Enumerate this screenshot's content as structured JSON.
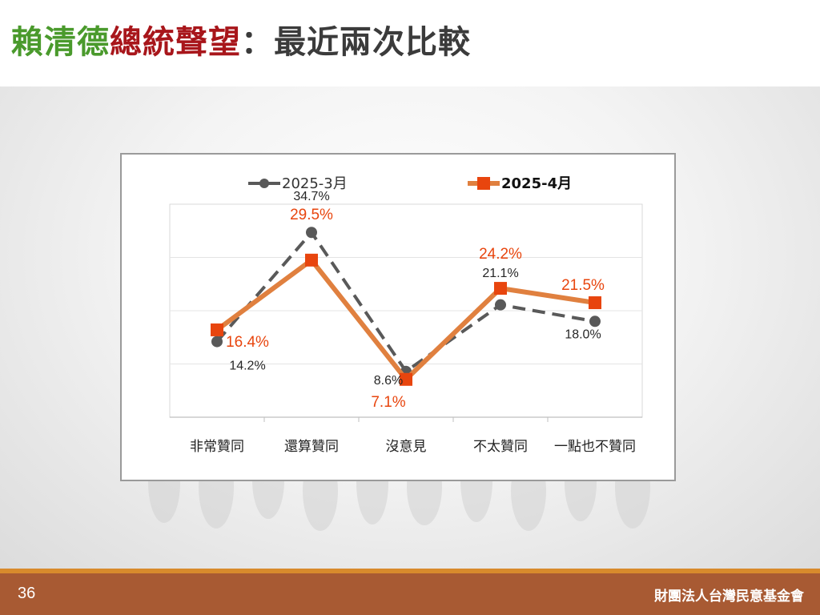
{
  "slide": {
    "title_part1": "賴清德",
    "title_part2": "總統聲望",
    "title_part3": "：最近兩次比較",
    "page_number": "36",
    "organization": "財團法人台灣民意基金會",
    "colors": {
      "title_green": "#4a9a2c",
      "title_red": "#a8161b",
      "footer": "#a85a33",
      "footer_line": "#d88a2c"
    }
  },
  "chart_data": {
    "type": "line",
    "title": "",
    "xlabel": "",
    "ylabel": "",
    "categories": [
      "非常贊同",
      "還算贊同",
      "沒意見",
      "不太贊同",
      "一點也不贊同"
    ],
    "ylim": [
      0,
      40
    ],
    "grid": true,
    "legend_position": "top",
    "series": [
      {
        "name": "2025-3月",
        "values": [
          14.2,
          34.7,
          8.6,
          21.1,
          18.0
        ],
        "labels": [
          "14.2%",
          "34.7%",
          "8.6%",
          "21.1%",
          "18.0%"
        ],
        "color": "#595959",
        "style": "dashed",
        "marker": "circle"
      },
      {
        "name": "2025-4月",
        "values": [
          16.4,
          29.5,
          7.1,
          24.2,
          21.5
        ],
        "labels": [
          "16.4%",
          "29.5%",
          "7.1%",
          "24.2%",
          "21.5%"
        ],
        "color": "#e0803f",
        "marker_color": "#e8450e",
        "label_color": "#e8450e",
        "style": "solid",
        "marker": "square"
      }
    ]
  }
}
